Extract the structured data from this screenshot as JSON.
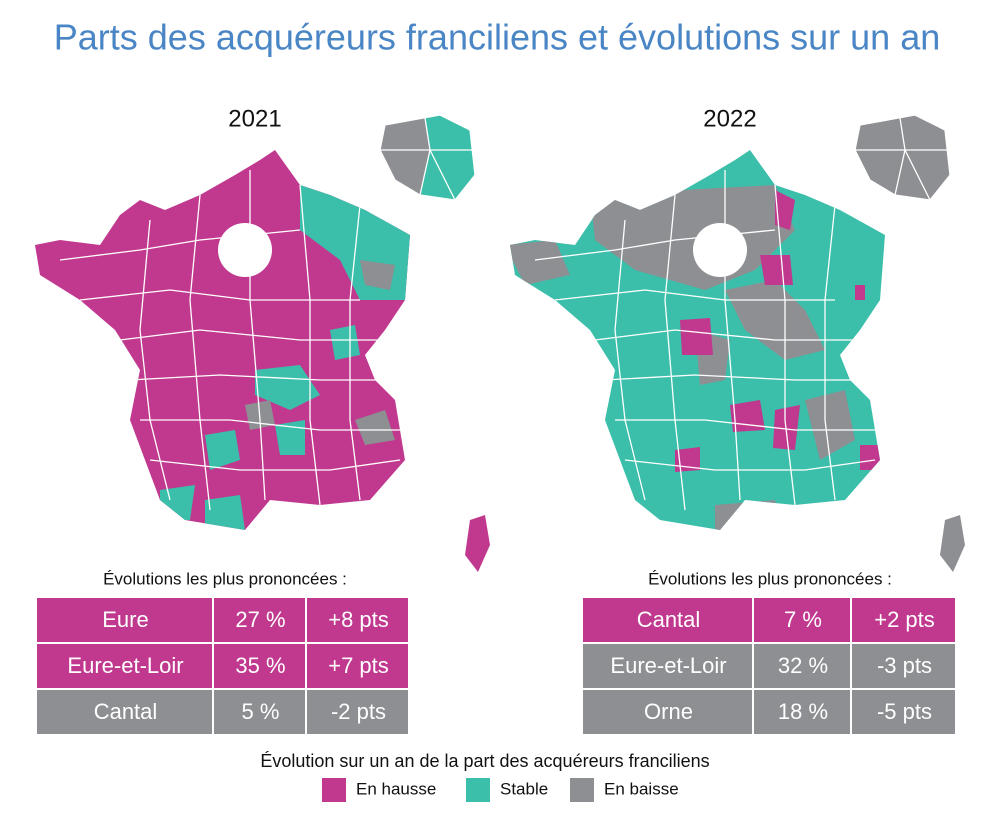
{
  "title": "Parts des acquéreurs franciliens et évolutions sur un an",
  "maps": [
    {
      "year": "2021",
      "table": {
        "caption": "Évolutions les plus prononcées :",
        "rows": [
          {
            "cells": [
              "Eure",
              "27 %",
              "+8 pts"
            ],
            "color": "#c0398f"
          },
          {
            "cells": [
              "Eure-et-Loir",
              "35 %",
              "+7 pts"
            ],
            "color": "#c0398f"
          },
          {
            "cells": [
              "Cantal",
              "5 %",
              "-2 pts"
            ],
            "color": "#8e8f93"
          }
        ]
      }
    },
    {
      "year": "2022",
      "table": {
        "caption": "Évolutions les plus prononcées :",
        "rows": [
          {
            "cells": [
              "Cantal",
              "7 %",
              "+2 pts"
            ],
            "color": "#c0398f"
          },
          {
            "cells": [
              "Eure-et-Loir",
              "32 %",
              "-3 pts"
            ],
            "color": "#8e8f93"
          },
          {
            "cells": [
              "Orne",
              "18 %",
              "-5 pts"
            ],
            "color": "#8e8f93"
          }
        ]
      }
    }
  ],
  "legend": {
    "title": "Évolution sur un an de la part des acquéreurs franciliens",
    "items": [
      {
        "label": "En hausse",
        "color": "#c0398f"
      },
      {
        "label": "Stable",
        "color": "#3bbfaa"
      },
      {
        "label": "En baisse",
        "color": "#8e8f93"
      }
    ]
  }
}
